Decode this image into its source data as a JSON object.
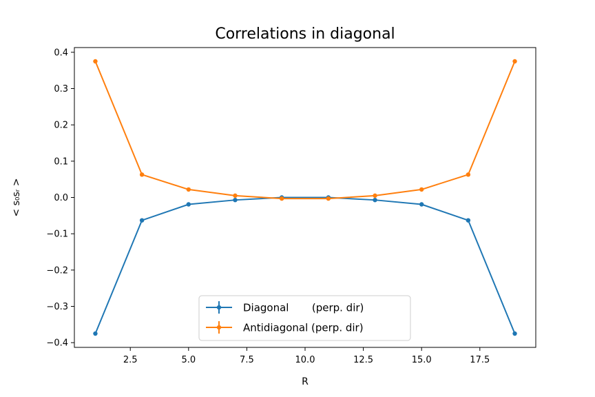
{
  "chart_data": {
    "type": "line",
    "title": "Correlations in diagonal",
    "xlabel": "R",
    "ylabel": "< s₀sᵣ >",
    "xlim": [
      0.1,
      19.9
    ],
    "ylim": [
      -0.413,
      0.413
    ],
    "xticks": [
      2.5,
      5.0,
      7.5,
      10.0,
      12.5,
      15.0,
      17.5
    ],
    "xtick_labels": [
      "2.5",
      "5.0",
      "7.5",
      "10.0",
      "12.5",
      "15.0",
      "17.5"
    ],
    "yticks": [
      0.4,
      0.3,
      0.2,
      0.1,
      0.0,
      -0.1,
      -0.2,
      -0.3,
      -0.4
    ],
    "ytick_labels": [
      "0.4",
      "0.3",
      "0.2",
      "0.1",
      "0.0",
      "−0.1",
      "−0.2",
      "−0.3",
      "−0.4"
    ],
    "grid": false,
    "legend_position": "lower-center",
    "x": [
      1,
      3,
      5,
      7,
      9,
      11,
      13,
      15,
      17,
      19
    ],
    "series": [
      {
        "name": "Diagonal       (perp. dir)",
        "color": "#1f77b4",
        "values": [
          -0.375,
          -0.063,
          -0.019,
          -0.007,
          0.0,
          0.0,
          -0.007,
          -0.019,
          -0.063,
          -0.375
        ]
      },
      {
        "name": "Antidiagonal (perp. dir)",
        "color": "#ff7f0e",
        "values": [
          0.375,
          0.063,
          0.022,
          0.005,
          -0.003,
          -0.003,
          0.005,
          0.022,
          0.063,
          0.375
        ]
      }
    ]
  }
}
